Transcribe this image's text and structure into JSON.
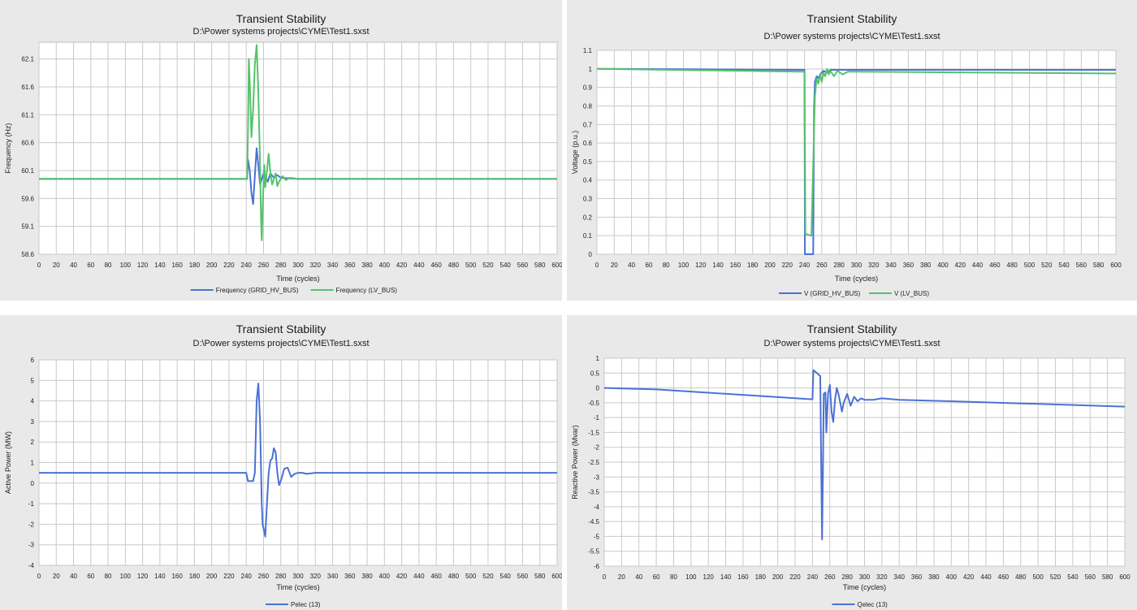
{
  "chart_data": [
    {
      "type": "line",
      "title": "Transient Stability",
      "subtitle": "D:\\Power systems projects\\CYME\\Test1.sxst",
      "xlabel": "Time (cycles)",
      "ylabel": "Frequency (Hz)",
      "xlim": [
        0,
        600
      ],
      "ylim": [
        58.6,
        62.4
      ],
      "xticks": [
        0,
        20,
        40,
        60,
        80,
        100,
        120,
        140,
        160,
        180,
        200,
        220,
        240,
        260,
        280,
        300,
        320,
        340,
        360,
        380,
        400,
        420,
        440,
        460,
        480,
        500,
        520,
        540,
        560,
        580,
        600
      ],
      "yticks": [
        58.6,
        59.1,
        59.6,
        60.1,
        60.6,
        61.1,
        61.6,
        62.1
      ],
      "grid": true,
      "legend_position": "bottom",
      "series": [
        {
          "name": "Frequency (GRID_HV_BUS)",
          "color": "#4a72d4",
          "x": [
            0,
            241,
            242,
            244,
            246,
            248,
            250,
            252,
            254,
            256,
            258,
            260,
            262,
            265,
            268,
            272,
            276,
            280,
            290,
            300,
            600
          ],
          "y": [
            59.95,
            59.95,
            60.3,
            60.1,
            59.7,
            59.5,
            60.0,
            60.5,
            60.2,
            59.85,
            59.95,
            60.05,
            60.0,
            59.9,
            60.05,
            59.97,
            60.02,
            59.97,
            59.96,
            59.95,
            59.95
          ]
        },
        {
          "name": "Frequency (LV_BUS)",
          "color": "#55c26b",
          "x": [
            0,
            241,
            242,
            243,
            244,
            246,
            248,
            250,
            252,
            254,
            256,
            257,
            258,
            259,
            260,
            261,
            262,
            264,
            266,
            268,
            270,
            272,
            274,
            276,
            278,
            282,
            286,
            290,
            300,
            600
          ],
          "y": [
            59.95,
            59.95,
            60.8,
            62.1,
            61.7,
            60.7,
            61.2,
            62.0,
            62.35,
            61.5,
            60.2,
            59.3,
            58.85,
            59.4,
            59.9,
            60.2,
            59.8,
            60.1,
            60.4,
            60.05,
            59.85,
            59.95,
            60.05,
            59.82,
            59.9,
            60.0,
            59.93,
            59.97,
            59.95,
            59.95
          ]
        }
      ]
    },
    {
      "type": "line",
      "title": "Transient Stability",
      "subtitle": "D:\\Power systems projects\\CYME\\Test1.sxst",
      "xlabel": "Time (cycles)",
      "ylabel": "Voltage (p.u.)",
      "xlim": [
        0,
        600
      ],
      "ylim": [
        0,
        1.1
      ],
      "xticks": [
        0,
        20,
        40,
        60,
        80,
        100,
        120,
        140,
        160,
        180,
        200,
        220,
        240,
        260,
        280,
        300,
        320,
        340,
        360,
        380,
        400,
        420,
        440,
        460,
        480,
        500,
        520,
        540,
        560,
        580,
        600
      ],
      "yticks": [
        0,
        0.1,
        0.2,
        0.3,
        0.4,
        0.5,
        0.6,
        0.7,
        0.8,
        0.9,
        1,
        1.1
      ],
      "grid": true,
      "legend_position": "bottom",
      "series": [
        {
          "name": "V (GRID_HV_BUS)",
          "color": "#4a72d4",
          "x": [
            0,
            240,
            240.5,
            250,
            251,
            252,
            254,
            256,
            258,
            262,
            266,
            270,
            280,
            300,
            600
          ],
          "y": [
            1.0,
            0.995,
            0.0,
            0.0,
            0.78,
            0.93,
            0.96,
            0.95,
            0.97,
            0.99,
            0.98,
            0.995,
            0.995,
            0.995,
            0.995
          ]
        },
        {
          "name": "V (LV_BUS)",
          "color": "#55c26b",
          "x": [
            0,
            238,
            240,
            241,
            248,
            252,
            254,
            256,
            258,
            260,
            262,
            264,
            266,
            268,
            270,
            274,
            278,
            284,
            290,
            300,
            600
          ],
          "y": [
            1.0,
            0.985,
            0.985,
            0.11,
            0.1,
            0.85,
            0.95,
            0.92,
            0.97,
            0.93,
            0.98,
            0.96,
            1.0,
            0.97,
            0.99,
            0.96,
            0.99,
            0.97,
            0.985,
            0.985,
            0.975
          ]
        }
      ]
    },
    {
      "type": "line",
      "title": "Transient Stability",
      "subtitle": "D:\\Power systems projects\\CYME\\Test1.sxst",
      "xlabel": "Time (cycles)",
      "ylabel": "Active Power (MW)",
      "xlim": [
        0,
        600
      ],
      "ylim": [
        -4,
        6
      ],
      "xticks": [
        0,
        20,
        40,
        60,
        80,
        100,
        120,
        140,
        160,
        180,
        200,
        220,
        240,
        260,
        280,
        300,
        320,
        340,
        360,
        380,
        400,
        420,
        440,
        460,
        480,
        500,
        520,
        540,
        560,
        580,
        600
      ],
      "yticks": [
        -4,
        -3,
        -2,
        -1,
        0,
        1,
        2,
        3,
        4,
        5,
        6
      ],
      "grid": true,
      "legend_position": "bottom",
      "series": [
        {
          "name": "Pelec (13)",
          "color": "#4a72d4",
          "x": [
            0,
            240,
            242,
            248,
            250,
            252,
            254,
            256,
            258,
            259,
            260,
            262,
            264,
            266,
            268,
            270,
            272,
            274,
            276,
            278,
            280,
            284,
            288,
            292,
            296,
            300,
            305,
            310,
            320,
            330,
            600
          ],
          "y": [
            0.5,
            0.5,
            0.1,
            0.1,
            0.5,
            4.0,
            4.85,
            3.0,
            -1.0,
            -2.0,
            -2.2,
            -2.6,
            -1.0,
            0.5,
            1.1,
            1.2,
            1.7,
            1.5,
            0.5,
            -0.1,
            0.1,
            0.7,
            0.75,
            0.3,
            0.45,
            0.5,
            0.5,
            0.45,
            0.5,
            0.5,
            0.5
          ]
        }
      ]
    },
    {
      "type": "line",
      "title": "Transient Stability",
      "subtitle": "D:\\Power systems projects\\CYME\\Test1.sxst",
      "xlabel": "Time (cycles)",
      "ylabel": "Reactive Power (Mvar)",
      "xlim": [
        0,
        600
      ],
      "ylim": [
        -6,
        1
      ],
      "xticks": [
        0,
        20,
        40,
        60,
        80,
        100,
        120,
        140,
        160,
        180,
        200,
        220,
        240,
        260,
        280,
        300,
        320,
        340,
        360,
        380,
        400,
        420,
        440,
        460,
        480,
        500,
        520,
        540,
        560,
        580,
        600
      ],
      "yticks": [
        -6,
        -5.5,
        -5,
        -4.5,
        -4,
        -3.5,
        -3,
        -2.5,
        -2,
        -1.5,
        -1,
        -0.5,
        0,
        0.5,
        1
      ],
      "grid": true,
      "legend_position": "bottom",
      "series": [
        {
          "name": "Qelec (13)",
          "color": "#4a72d4",
          "x": [
            0,
            60,
            238,
            240,
            241,
            249,
            250,
            251,
            252,
            253,
            255,
            256,
            257,
            258,
            260,
            262,
            264,
            266,
            268,
            270,
            272,
            274,
            276,
            280,
            284,
            288,
            292,
            296,
            300,
            310,
            320,
            340,
            400,
            600
          ],
          "y": [
            0.0,
            -0.05,
            -0.38,
            -0.38,
            0.6,
            0.4,
            -2.5,
            -5.1,
            -3.0,
            -0.2,
            -0.15,
            -1.5,
            -0.8,
            -0.2,
            0.1,
            -0.8,
            -1.15,
            -0.4,
            0.0,
            -0.2,
            -0.5,
            -0.8,
            -0.5,
            -0.2,
            -0.6,
            -0.3,
            -0.45,
            -0.35,
            -0.4,
            -0.4,
            -0.35,
            -0.4,
            -0.45,
            -0.63
          ]
        }
      ]
    }
  ]
}
